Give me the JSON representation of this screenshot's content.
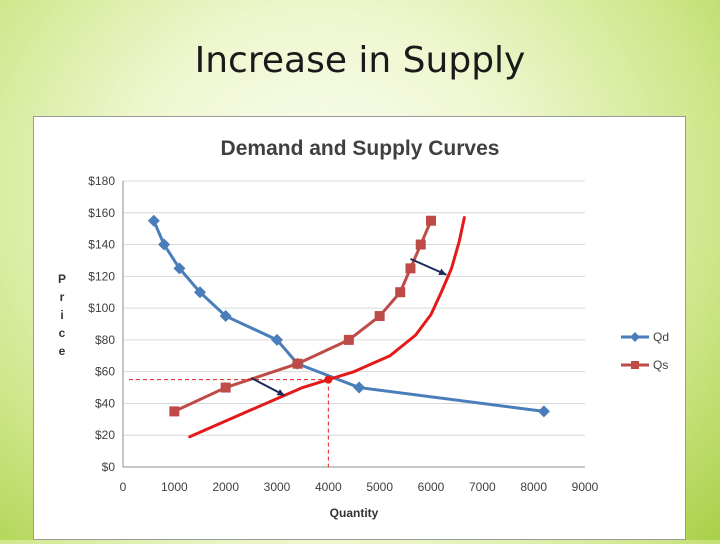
{
  "slide": {
    "title": "Increase in Supply"
  },
  "chart_data": {
    "type": "line",
    "title": "Demand and Supply Curves",
    "xlabel": "Quantity",
    "ylabel": "Price",
    "xlim": [
      0,
      9000
    ],
    "ylim": [
      0,
      180
    ],
    "xticks": [
      0,
      1000,
      2000,
      3000,
      4000,
      5000,
      6000,
      7000,
      8000,
      9000
    ],
    "yticks": [
      0,
      20,
      40,
      60,
      80,
      100,
      120,
      140,
      160,
      180
    ],
    "ytick_labels": [
      "$0",
      "$20",
      "$40",
      "$60",
      "$80",
      "$100",
      "$120",
      "$140",
      "$160",
      "$180"
    ],
    "grid": "horizontal",
    "legend_position": "right",
    "series": [
      {
        "name": "Qd",
        "color": "#4a7ebb",
        "marker": "diamond",
        "x": [
          600,
          800,
          1100,
          1500,
          2000,
          3000,
          3400,
          4600,
          8200
        ],
        "y": [
          155,
          140,
          125,
          110,
          95,
          80,
          65,
          50,
          35
        ]
      },
      {
        "name": "Qs",
        "color": "#be4b48",
        "marker": "square",
        "x": [
          1000,
          2000,
          3400,
          4400,
          5000,
          5400,
          5600,
          5800,
          6000
        ],
        "y": [
          35,
          50,
          65,
          80,
          95,
          110,
          125,
          140,
          155
        ]
      }
    ],
    "annotations": {
      "new_supply_curve": {
        "color": "#e41a1a",
        "x": [
          1300,
          2500,
          3500,
          4500,
          5200,
          5700,
          6000,
          6200,
          6400,
          6550,
          6650
        ],
        "y": [
          19,
          36,
          50,
          60,
          70,
          83,
          96,
          110,
          125,
          142,
          157
        ]
      },
      "equilibrium_point": {
        "x": 4000,
        "y": 55,
        "color": "#e41a1a"
      },
      "arrows": [
        {
          "from": [
            2500,
            56
          ],
          "to": [
            3150,
            45
          ],
          "color": "#1a2a5a"
        },
        {
          "from": [
            5600,
            131
          ],
          "to": [
            6300,
            121
          ],
          "color": "#1a2a5a"
        }
      ],
      "guide_lines": {
        "x": 4000,
        "y": 55,
        "color": "#e41a1a"
      }
    }
  }
}
